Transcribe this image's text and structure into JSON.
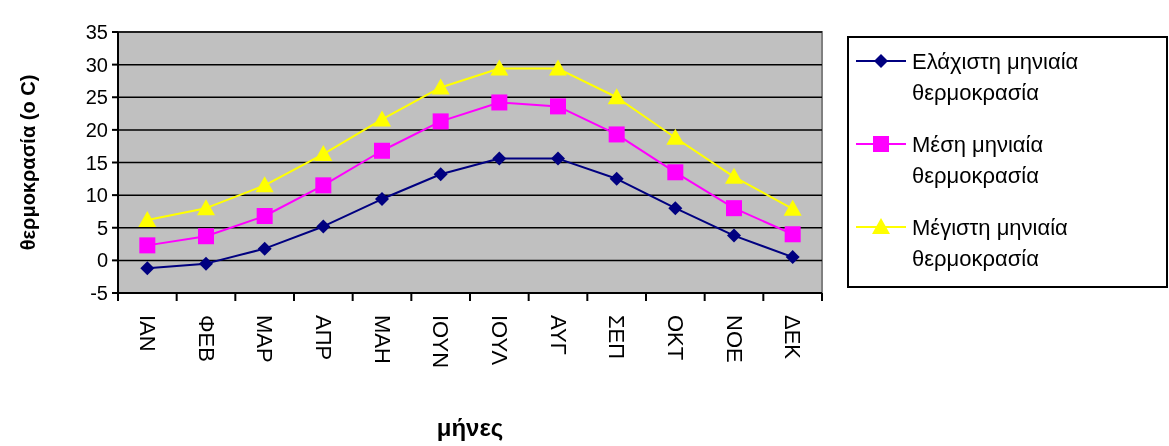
{
  "chart_data": {
    "type": "line",
    "xlabel": "μήνες",
    "ylabel": "θερμοκρασία (ο C)",
    "categories": [
      "ΙΑΝ",
      "ΦΕΒ",
      "ΜΑΡ",
      "ΑΠΡ",
      "ΜΑΗ",
      "ΙΟΥΝ",
      "ΙΟΥΛ",
      "ΑΥΓ",
      "ΣΕΠ",
      "ΟΚΤ",
      "ΝΟΕ",
      "ΔΕΚ"
    ],
    "series": [
      {
        "name": "Ελάχιστη μηνιαία θερμοκρασία",
        "color": "#000080",
        "marker": "diamond",
        "values": [
          -1.2,
          -0.5,
          1.8,
          5.2,
          9.4,
          13.2,
          15.6,
          15.6,
          12.5,
          8.0,
          3.8,
          0.5
        ]
      },
      {
        "name": "Μέση μηνιαία θερμοκρασία",
        "color": "#ff00ff",
        "marker": "square",
        "values": [
          2.3,
          3.7,
          6.8,
          11.5,
          16.8,
          21.3,
          24.2,
          23.6,
          19.3,
          13.5,
          8.0,
          4.0
        ]
      },
      {
        "name": "Μέγιστη μηνιαία θερμοκρασία",
        "color": "#ffff00",
        "marker": "triangle",
        "values": [
          6.2,
          8.0,
          11.5,
          16.3,
          21.6,
          26.5,
          29.4,
          29.4,
          25.0,
          18.8,
          12.8,
          7.9
        ]
      }
    ],
    "ylim": [
      -5,
      35
    ],
    "yticks": [
      -5,
      0,
      5,
      10,
      15,
      20,
      25,
      30,
      35
    ],
    "grid": "y",
    "legend": "right"
  }
}
